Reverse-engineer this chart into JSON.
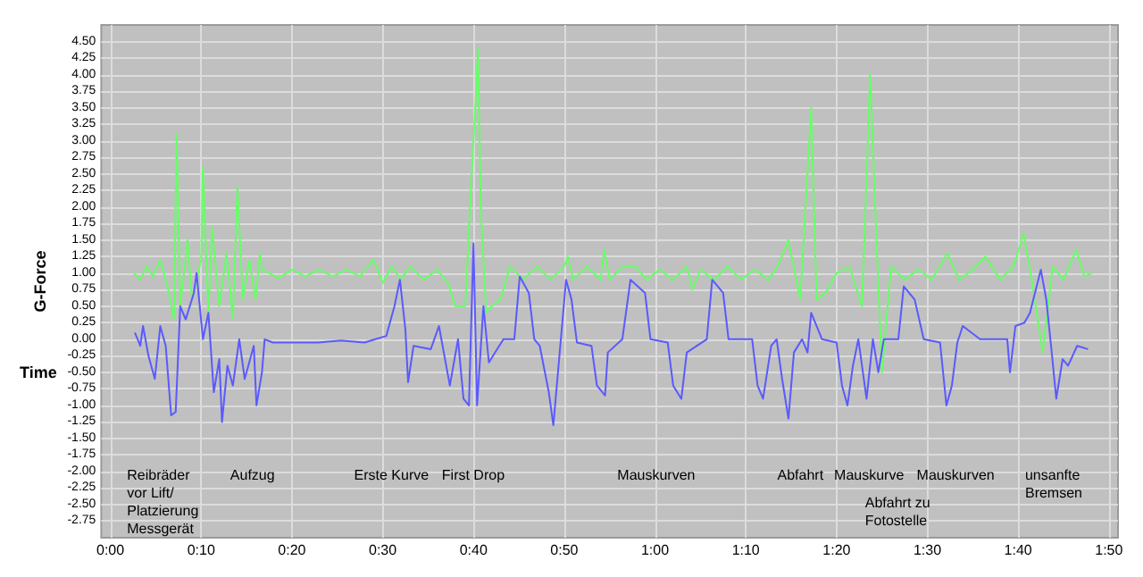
{
  "chart_data": {
    "type": "line",
    "xlabel": "Time",
    "ylabel": "G-Force",
    "xlim": [
      -1,
      111
    ],
    "ylim": [
      -3,
      4.75
    ],
    "xticks": [
      {
        "value": 0,
        "label": "0:00"
      },
      {
        "value": 10,
        "label": "0:10"
      },
      {
        "value": 20,
        "label": "0:20"
      },
      {
        "value": 30,
        "label": "0:30"
      },
      {
        "value": 40,
        "label": "0:40"
      },
      {
        "value": 50,
        "label": "0:50"
      },
      {
        "value": 60,
        "label": "1:00"
      },
      {
        "value": 70,
        "label": "1:10"
      },
      {
        "value": 80,
        "label": "1:20"
      },
      {
        "value": 90,
        "label": "1:30"
      },
      {
        "value": 100,
        "label": "1:40"
      },
      {
        "value": 110,
        "label": "1:50"
      }
    ],
    "yticks": [
      {
        "value": 4.5,
        "label": "4.50"
      },
      {
        "value": 4.25,
        "label": "4.25"
      },
      {
        "value": 4,
        "label": "4.00"
      },
      {
        "value": 3.75,
        "label": "3.75"
      },
      {
        "value": 3.5,
        "label": "3.50"
      },
      {
        "value": 3.25,
        "label": "3.25"
      },
      {
        "value": 3,
        "label": "3.00"
      },
      {
        "value": 2.75,
        "label": "2.75"
      },
      {
        "value": 2.5,
        "label": "2.50"
      },
      {
        "value": 2.25,
        "label": "2.25"
      },
      {
        "value": 2,
        "label": "2.00"
      },
      {
        "value": 1.75,
        "label": "1.75"
      },
      {
        "value": 1.5,
        "label": "1.50"
      },
      {
        "value": 1.25,
        "label": "1.25"
      },
      {
        "value": 1,
        "label": "1.00"
      },
      {
        "value": 0.75,
        "label": "0.75"
      },
      {
        "value": 0.5,
        "label": "0.50"
      },
      {
        "value": 0.25,
        "label": "0.25"
      },
      {
        "value": 0,
        "label": "0.00"
      },
      {
        "value": -0.25,
        "label": "-0.25"
      },
      {
        "value": -0.5,
        "label": "-0.50"
      },
      {
        "value": -0.75,
        "label": "-0.75"
      },
      {
        "value": -1,
        "label": "-1.00"
      },
      {
        "value": -1.25,
        "label": "-1.25"
      },
      {
        "value": -1.5,
        "label": "-1.50"
      },
      {
        "value": -1.75,
        "label": "-1.75"
      },
      {
        "value": -2,
        "label": "-2.00"
      },
      {
        "value": -2.25,
        "label": "-2.25"
      },
      {
        "value": -2.5,
        "label": "-2.50"
      },
      {
        "value": -2.75,
        "label": "-2.75"
      }
    ],
    "grid": true,
    "series": [
      {
        "color": "#66ff66",
        "x": [
          2.6,
          3.3,
          4,
          4.7,
          5.5,
          6.3,
          7,
          7.3,
          7.7,
          8.5,
          9,
          10,
          10.2,
          10.8,
          11.2,
          12,
          12.8,
          13.5,
          14,
          14.6,
          15.3,
          16,
          16.5,
          16.7,
          17.5,
          18.5,
          20,
          21.5,
          23,
          24.5,
          26,
          27.5,
          29,
          30,
          31,
          32,
          33,
          34.5,
          36,
          37.2,
          38,
          39.1,
          39.8,
          40.2,
          40.5,
          40.8,
          41.4,
          42,
          43,
          44,
          45.5,
          47,
          48.5,
          50,
          50.4,
          51,
          52.5,
          54,
          54.4,
          55,
          56.5,
          57.9,
          59,
          60.5,
          62,
          63.5,
          64.1,
          65,
          66.5,
          68,
          69.5,
          71,
          72.5,
          73.5,
          74.7,
          76,
          77.2,
          77.8,
          78.8,
          80,
          81.4,
          82.8,
          83.7,
          84.4,
          85,
          86,
          87.5,
          89,
          90.5,
          92.2,
          93.5,
          95,
          96.4,
          98,
          99.5,
          100.6,
          101.5,
          102.7,
          103.8,
          105,
          106.4,
          107.3,
          108.1
        ],
        "values": [
          1.0,
          0.9,
          1.1,
          0.95,
          1.2,
          0.8,
          0.3,
          3.1,
          0.5,
          1.5,
          0.6,
          1.2,
          2.6,
          0.4,
          1.7,
          0.5,
          1.3,
          0.3,
          2.3,
          0.6,
          1.2,
          0.6,
          1.3,
          1.05,
          1.0,
          0.92,
          1.05,
          0.95,
          1.05,
          0.95,
          1.05,
          0.95,
          1.2,
          0.85,
          1.1,
          0.9,
          1.1,
          0.9,
          1.05,
          0.85,
          0.5,
          0.5,
          2.5,
          3.5,
          4.4,
          2.0,
          0.4,
          0.5,
          0.6,
          1.1,
          0.9,
          1.1,
          0.9,
          1.1,
          1.25,
          0.9,
          1.1,
          0.9,
          1.35,
          0.9,
          1.1,
          1.1,
          0.9,
          1.05,
          0.9,
          1.1,
          0.75,
          1.05,
          0.9,
          1.1,
          0.9,
          1.05,
          0.9,
          1.1,
          1.5,
          0.6,
          3.5,
          0.6,
          0.7,
          1.0,
          1.1,
          0.5,
          4.0,
          1.5,
          -0.5,
          1.1,
          0.9,
          1.05,
          0.9,
          1.3,
          0.9,
          1.05,
          1.25,
          0.9,
          1.1,
          1.6,
          0.9,
          -0.2,
          1.1,
          0.9,
          1.35,
          0.95,
          1.0
        ]
      },
      {
        "color": "#5a5aff",
        "x": [
          2.7,
          3.3,
          3.6,
          4.2,
          4.9,
          5.5,
          6.1,
          6.7,
          7.2,
          7.7,
          8.3,
          9.2,
          9.5,
          10.2,
          10.8,
          11.4,
          12,
          12.3,
          12.9,
          13.5,
          14.2,
          14.8,
          15.8,
          16.1,
          16.7,
          17,
          17.9,
          20.5,
          22.9,
          25.4,
          28,
          29.2,
          30.4,
          31.3,
          31.9,
          32.5,
          32.8,
          33.4,
          35.3,
          36.2,
          37.4,
          38.3,
          38.9,
          39.5,
          40,
          40.4,
          41.1,
          41.7,
          43.3,
          44.5,
          45.1,
          46.1,
          46.7,
          47.3,
          48.3,
          48.8,
          49.5,
          50.2,
          50.8,
          51.4,
          53,
          53.6,
          54.5,
          54.8,
          56.4,
          57.3,
          58.9,
          59.5,
          61.4,
          62,
          62.9,
          63.5,
          65.7,
          66.3,
          67.5,
          68.1,
          70,
          70.7,
          71.3,
          71.9,
          72.8,
          73.4,
          74,
          74.7,
          75.3,
          76.2,
          76.8,
          77.2,
          78.4,
          80,
          80.6,
          81.2,
          81.8,
          82.4,
          83.3,
          84,
          84.6,
          85.2,
          86.8,
          87.4,
          88.6,
          89.6,
          91.4,
          92.1,
          92.7,
          93.3,
          93.9,
          95.8,
          98.8,
          99.1,
          99.7,
          100.7,
          101.3,
          102.5,
          103.1,
          103.7,
          104.2,
          104.9,
          105.5,
          106.5,
          107.7
        ],
        "values": [
          0.1,
          -0.1,
          0.2,
          -0.25,
          -0.6,
          0.2,
          -0.1,
          -1.15,
          -1.1,
          0.5,
          0.3,
          0.7,
          1.0,
          0.0,
          0.4,
          -0.8,
          -0.3,
          -1.25,
          -0.4,
          -0.7,
          0.0,
          -0.6,
          -0.1,
          -1.0,
          -0.5,
          0.0,
          -0.05,
          -0.05,
          -0.05,
          -0.02,
          -0.05,
          0.0,
          0.05,
          0.5,
          0.9,
          0.15,
          -0.65,
          -0.1,
          -0.15,
          0.2,
          -0.7,
          0.0,
          -0.9,
          -1.0,
          1.45,
          -1.0,
          0.5,
          -0.35,
          0.0,
          0.0,
          0.95,
          0.7,
          0.0,
          -0.1,
          -0.8,
          -1.3,
          -0.2,
          0.9,
          0.6,
          -0.05,
          -0.1,
          -0.7,
          -0.85,
          -0.2,
          0.0,
          0.9,
          0.7,
          0.0,
          -0.05,
          -0.7,
          -0.9,
          -0.2,
          0.0,
          0.9,
          0.7,
          0.0,
          0.0,
          0.0,
          -0.7,
          -0.9,
          -0.1,
          0.0,
          -0.6,
          -1.2,
          -0.2,
          0.0,
          -0.2,
          0.4,
          0.0,
          -0.05,
          -0.7,
          -1.0,
          -0.4,
          0.0,
          -0.9,
          0.0,
          -0.5,
          0.0,
          0.0,
          0.8,
          0.6,
          0.0,
          -0.05,
          -1.0,
          -0.7,
          -0.05,
          0.2,
          0.0,
          0.0,
          -0.5,
          0.2,
          0.25,
          0.4,
          1.05,
          0.6,
          -0.2,
          -0.9,
          -0.3,
          -0.4,
          -0.1,
          -0.15
        ]
      }
    ],
    "annotations": [
      "Reibräder\nvor Lift/\nPlatzierung\nMessgerät",
      "Aufzug",
      "Erste Kurve",
      "First Drop",
      "Mauskurven",
      "Abfahrt",
      "Mauskurve",
      "Abfahrt zu\nFotostelle",
      "Mauskurven",
      "unsanfte\nBremsen"
    ]
  }
}
